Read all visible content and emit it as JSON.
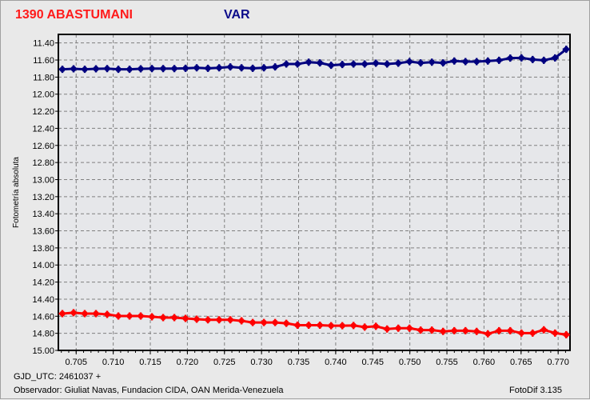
{
  "header": {
    "object_title": "1390  ABASTUMANI",
    "series_title": "VAR"
  },
  "footer": {
    "gjd": "GJD_UTC: 2461037 +",
    "observer": "Observador: Giuliat Navas, Fundacion CIDA, OAN  Merida-Venezuela",
    "version": "FotoDif 3.135"
  },
  "chart_data": {
    "type": "line",
    "title": "",
    "xlabel": "",
    "ylabel": "Fotometría absoluta",
    "xlim": [
      0.7026,
      0.7716
    ],
    "ylim": [
      11.3,
      15.0
    ],
    "y_inverted": true,
    "grid": true,
    "x_ticks": [
      "0.705",
      "0.710",
      "0.715",
      "0.720",
      "0.725",
      "0.730",
      "0.735",
      "0.740",
      "0.745",
      "0.750",
      "0.755",
      "0.760",
      "0.765",
      "0.770"
    ],
    "y_ticks": [
      "11.40",
      "11.60",
      "11.80",
      "12.00",
      "12.20",
      "12.40",
      "12.60",
      "12.80",
      "13.00",
      "13.20",
      "13.40",
      "13.60",
      "13.80",
      "14.00",
      "14.20",
      "14.40",
      "14.60",
      "14.80",
      "15.00"
    ],
    "x": [
      0.70314,
      0.70465,
      0.70616,
      0.70767,
      0.70918,
      0.71069,
      0.7122,
      0.71371,
      0.71522,
      0.71673,
      0.71824,
      0.71975,
      0.72126,
      0.72277,
      0.72428,
      0.72579,
      0.7273,
      0.72881,
      0.73032,
      0.73183,
      0.73334,
      0.73485,
      0.73636,
      0.73787,
      0.73938,
      0.74089,
      0.7424,
      0.74391,
      0.74542,
      0.74693,
      0.74844,
      0.74995,
      0.75146,
      0.75297,
      0.75448,
      0.75599,
      0.7575,
      0.75901,
      0.76052,
      0.76203,
      0.76354,
      0.76505,
      0.76656,
      0.76807,
      0.76958,
      0.77109
    ],
    "series": [
      {
        "color": "#00007f",
        "values": [
          11.709,
          11.703,
          11.709,
          11.703,
          11.7,
          11.709,
          11.709,
          11.703,
          11.7,
          11.7,
          11.7,
          11.697,
          11.691,
          11.697,
          11.691,
          11.681,
          11.691,
          11.697,
          11.691,
          11.681,
          11.647,
          11.647,
          11.625,
          11.634,
          11.662,
          11.653,
          11.647,
          11.647,
          11.637,
          11.647,
          11.637,
          11.619,
          11.634,
          11.625,
          11.634,
          11.612,
          11.619,
          11.619,
          11.612,
          11.603,
          11.578,
          11.575,
          11.594,
          11.603,
          11.575,
          11.475
        ]
      },
      {
        "color": "#ff0000",
        "values": [
          14.569,
          14.559,
          14.569,
          14.569,
          14.578,
          14.597,
          14.597,
          14.597,
          14.606,
          14.616,
          14.616,
          14.625,
          14.635,
          14.642,
          14.642,
          14.642,
          14.654,
          14.673,
          14.673,
          14.673,
          14.683,
          14.705,
          14.705,
          14.705,
          14.711,
          14.711,
          14.708,
          14.727,
          14.718,
          14.749,
          14.74,
          14.74,
          14.762,
          14.762,
          14.778,
          14.769,
          14.769,
          14.778,
          14.806,
          14.769,
          14.769,
          14.797,
          14.797,
          14.759,
          14.797,
          14.816
        ]
      }
    ]
  }
}
